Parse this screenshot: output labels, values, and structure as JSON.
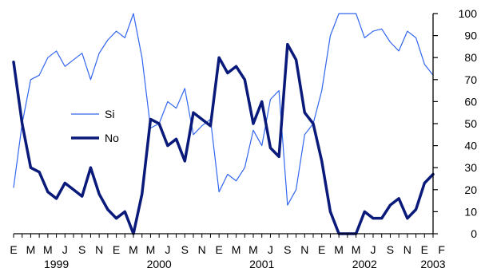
{
  "chart_data": {
    "type": "line",
    "title": "",
    "xlabel": "",
    "ylabel": "",
    "ylim": [
      0,
      100
    ],
    "y_ticks": [
      0,
      10,
      20,
      30,
      40,
      50,
      60,
      70,
      80,
      90,
      100
    ],
    "y_axis_side": "right",
    "grid": false,
    "legend_position": "left-middle",
    "month_labels": [
      "E",
      "M",
      "M",
      "J",
      "S",
      "N",
      "E",
      "M",
      "M",
      "J",
      "S",
      "N",
      "E",
      "M",
      "M",
      "J",
      "S",
      "N",
      "E",
      "M",
      "M",
      "J",
      "S",
      "N",
      "E",
      "F"
    ],
    "year_labels": [
      {
        "text": "1999",
        "index": 5
      },
      {
        "text": "2000",
        "index": 17
      },
      {
        "text": "2001",
        "index": 29
      },
      {
        "text": "2002",
        "index": 41
      },
      {
        "text": "2003",
        "index": 49
      }
    ],
    "series": [
      {
        "name": "Si",
        "color": "#3366ee",
        "line_style": "thin",
        "values": [
          21,
          50,
          70,
          72,
          80,
          83,
          76,
          79,
          82,
          70,
          82,
          88,
          92,
          89,
          100,
          80,
          48,
          50,
          60,
          57,
          66,
          45,
          49,
          52,
          19,
          27,
          24,
          30,
          47,
          40,
          61,
          65,
          13,
          20,
          45,
          50,
          65,
          90,
          100,
          100,
          100,
          89,
          92,
          93,
          87,
          83,
          92,
          89,
          77,
          72
        ]
      },
      {
        "name": "No",
        "color": "#0a1a7a",
        "line_style": "thick",
        "values": [
          78,
          50,
          30,
          28,
          19,
          16,
          23,
          20,
          17,
          30,
          18,
          11,
          7,
          10,
          0,
          18,
          52,
          50,
          40,
          43,
          33,
          55,
          52,
          49,
          80,
          73,
          76,
          70,
          50,
          60,
          39,
          35,
          86,
          79,
          55,
          50,
          33,
          10,
          0,
          0,
          0,
          10,
          7,
          7,
          13,
          16,
          7,
          11,
          23,
          27
        ]
      }
    ]
  }
}
